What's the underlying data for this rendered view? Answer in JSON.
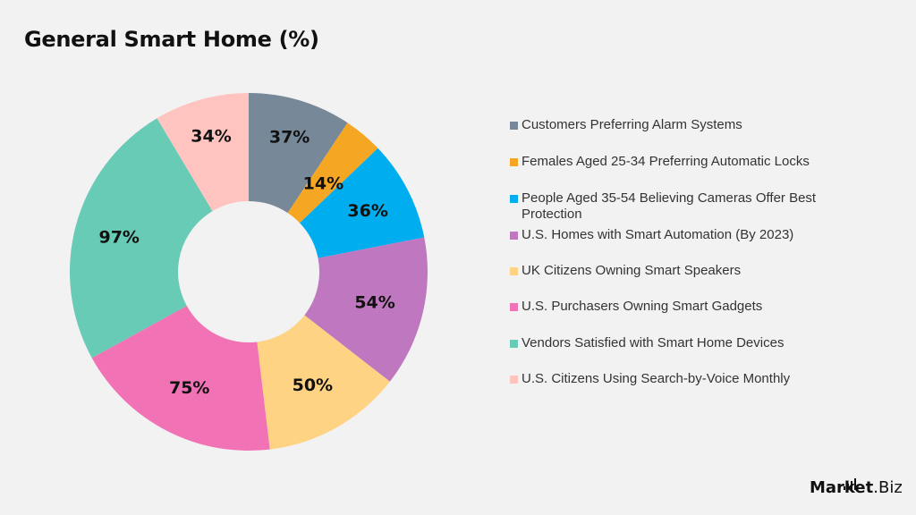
{
  "title": "General Smart Home (%)",
  "chart_data": {
    "type": "pie",
    "subtype": "donut",
    "title": "General Smart Home (%)",
    "categories": [
      "Customers Preferring Alarm Systems",
      "Females Aged 25-34 Preferring Automatic Locks",
      "People Aged 35-54 Believing Cameras Offer Best Protection",
      "U.S. Homes with Smart Automation (By 2023)",
      "UK Citizens Owning Smart Speakers",
      "U.S. Purchasers Owning Smart Gadgets",
      "Vendors Satisfied with Smart Home Devices",
      "U.S. Citizens Using Search-by-Voice Monthly"
    ],
    "values": [
      37,
      14,
      36,
      54,
      50,
      75,
      97,
      34
    ],
    "labels": [
      "37%",
      "14%",
      "36%",
      "54%",
      "50%",
      "75%",
      "97%",
      "34%"
    ],
    "colors": [
      "#778899",
      "#f5a623",
      "#00aeef",
      "#bf77bf",
      "#ffd384",
      "#f272b6",
      "#68cbb6",
      "#ffc4c0"
    ],
    "legend_position": "right",
    "grid": false
  },
  "legend": {
    "items": [
      {
        "label": "Customers Preferring Alarm Systems",
        "color": "#778899"
      },
      {
        "label": "Females Aged 25-34 Preferring Automatic Locks",
        "color": "#f5a623"
      },
      {
        "label": "People Aged 35-54 Believing Cameras Offer Best Protection",
        "color": "#00aeef"
      },
      {
        "label": "U.S. Homes with Smart Automation (By 2023)",
        "color": "#bf77bf"
      },
      {
        "label": "UK Citizens Owning Smart Speakers",
        "color": "#ffd384"
      },
      {
        "label": "U.S. Purchasers Owning Smart Gadgets",
        "color": "#f272b6"
      },
      {
        "label": "Vendors Satisfied with Smart Home Devices",
        "color": "#68cbb6"
      },
      {
        "label": "U.S. Citizens Using Search-by-Voice Monthly",
        "color": "#ffc4c0"
      }
    ]
  },
  "logo": {
    "main": "Market",
    "suffix": ".Biz"
  }
}
